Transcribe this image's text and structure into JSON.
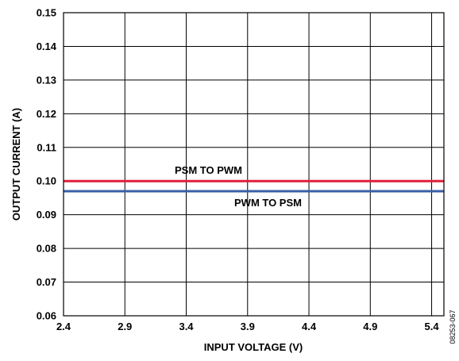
{
  "chart_data": {
    "type": "line",
    "xlabel": "INPUT VOLTAGE (V)",
    "ylabel": "OUTPUT CURRENT (A)",
    "xlim": [
      2.4,
      5.5
    ],
    "ylim": [
      0.06,
      0.15
    ],
    "x_ticks": [
      "2.4",
      "2.9",
      "3.4",
      "3.9",
      "4.4",
      "4.9",
      "5.4"
    ],
    "y_ticks": [
      "0.06",
      "0.07",
      "0.08",
      "0.09",
      "0.10",
      "0.11",
      "0.12",
      "0.13",
      "0.14",
      "0.15"
    ],
    "grid": true,
    "series": [
      {
        "name": "PSM TO PWM",
        "color": "#e0203a",
        "x": [
          2.4,
          5.5
        ],
        "y": [
          0.1,
          0.1
        ]
      },
      {
        "name": "PWM TO PSM",
        "color": "#3a5fa8",
        "x": [
          2.4,
          5.5
        ],
        "y": [
          0.097,
          0.097
        ]
      }
    ],
    "annotations": {
      "series_0_label": "PSM TO PWM",
      "series_1_label": "PWM TO PSM"
    },
    "figure_code": "08253-067"
  }
}
